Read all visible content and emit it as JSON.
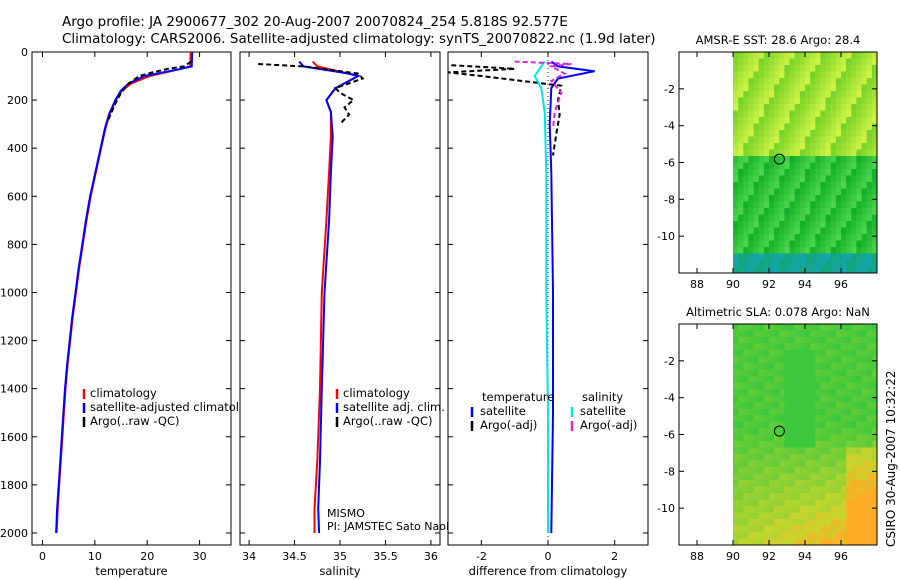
{
  "header": {
    "line1": "Argo profile: JA 2900677_302 20-Aug-2007 20070824_254 5.818S 92.577E",
    "line2": "Climatology: CARS2006. Satellite-adjusted climatology: synTS_20070822.nc (1.9d later)"
  },
  "side_stamp": "CSIRO 30-Aug-2007 10:32:22",
  "colors": {
    "climatology": "#ff0000",
    "satellite": "#0000ff",
    "argo": "#000000",
    "sat_salinity": "#00e5ee",
    "argo_salinity": "#e020e0"
  },
  "chart_data": [
    {
      "type": "line",
      "id": "temperature",
      "xlabel": "temperature",
      "ylabel": "",
      "xlim": [
        -2,
        36
      ],
      "ylim": [
        2050,
        0
      ],
      "xticks": [
        0,
        10,
        20,
        30
      ],
      "yticks": [
        0,
        200,
        400,
        600,
        800,
        1000,
        1200,
        1400,
        1600,
        1800,
        2000
      ],
      "legend": [
        "climatology",
        "satellite-adjusted climatology",
        "Argo(..raw -QC)"
      ],
      "series": [
        {
          "name": "climatology",
          "color": "#ff0000",
          "dash": "",
          "points": [
            [
              28.3,
              0
            ],
            [
              28.2,
              60
            ],
            [
              26.5,
              70
            ],
            [
              20.5,
              100
            ],
            [
              17,
              130
            ],
            [
              15.2,
              160
            ],
            [
              14,
              200
            ],
            [
              12.8,
              260
            ],
            [
              12,
              320
            ],
            [
              11.2,
              400
            ],
            [
              10.2,
              500
            ],
            [
              9.2,
              600
            ],
            [
              8.4,
              700
            ],
            [
              7.7,
              800
            ],
            [
              7,
              900
            ],
            [
              6.4,
              1000
            ],
            [
              5.8,
              1100
            ],
            [
              5.3,
              1200
            ],
            [
              4.8,
              1300
            ],
            [
              4.4,
              1400
            ],
            [
              4.1,
              1500
            ],
            [
              3.8,
              1600
            ],
            [
              3.5,
              1700
            ],
            [
              3.2,
              1800
            ],
            [
              2.9,
              1900
            ],
            [
              2.7,
              2000
            ]
          ]
        },
        {
          "name": "satellite-adjusted climatology",
          "color": "#0000ff",
          "dash": "",
          "points": [
            [
              28.6,
              0
            ],
            [
              28.5,
              60
            ],
            [
              26,
              72
            ],
            [
              19.5,
              100
            ],
            [
              16.5,
              130
            ],
            [
              15,
              160
            ],
            [
              13.9,
              200
            ],
            [
              12.7,
              260
            ],
            [
              11.9,
              320
            ],
            [
              11.1,
              400
            ],
            [
              10.1,
              500
            ],
            [
              9.1,
              600
            ],
            [
              8.3,
              700
            ],
            [
              7.6,
              800
            ],
            [
              6.9,
              900
            ],
            [
              6.3,
              1000
            ],
            [
              5.7,
              1100
            ],
            [
              5.2,
              1200
            ],
            [
              4.7,
              1300
            ],
            [
              4.3,
              1400
            ],
            [
              4,
              1500
            ],
            [
              3.7,
              1600
            ],
            [
              3.4,
              1700
            ],
            [
              3.1,
              1800
            ],
            [
              2.8,
              1900
            ],
            [
              2.6,
              2000
            ]
          ]
        },
        {
          "name": "Argo(..raw -QC)",
          "color": "#000000",
          "dash": "5,3",
          "points": [
            [
              28.4,
              40
            ],
            [
              27,
              60
            ],
            [
              24,
              70
            ],
            [
              21,
              85
            ],
            [
              18.5,
              100
            ],
            [
              16.5,
              130
            ],
            [
              15,
              170
            ],
            [
              13.8,
              220
            ],
            [
              12.6,
              280
            ]
          ]
        }
      ]
    },
    {
      "type": "line",
      "id": "salinity",
      "xlabel": "salinity",
      "ylabel": "",
      "xlim": [
        33.9,
        36.1
      ],
      "ylim": [
        2050,
        0
      ],
      "xticks": [
        34,
        34.5,
        35,
        35.5,
        36
      ],
      "legend": [
        "climatology",
        "satellite adj. clim.",
        "Argo(..raw -QC)"
      ],
      "annotations": [
        "MISMO",
        "PI: JAMSTEC Sato Naoki"
      ],
      "series": [
        {
          "name": "climatology",
          "color": "#ff0000",
          "dash": "",
          "points": [
            [
              34.7,
              40
            ],
            [
              34.75,
              60
            ],
            [
              35.2,
              100
            ],
            [
              34.95,
              150
            ],
            [
              34.85,
              200
            ],
            [
              34.9,
              250
            ],
            [
              34.9,
              350
            ],
            [
              34.88,
              500
            ],
            [
              34.85,
              700
            ],
            [
              34.8,
              1000
            ],
            [
              34.78,
              1400
            ],
            [
              34.75,
              1700
            ],
            [
              34.72,
              1900
            ],
            [
              34.72,
              2000
            ]
          ]
        },
        {
          "name": "satellite adj. clim.",
          "color": "#0000ff",
          "dash": "",
          "points": [
            [
              34.55,
              40
            ],
            [
              34.6,
              60
            ],
            [
              35.1,
              90
            ],
            [
              35.2,
              100
            ],
            [
              34.95,
              150
            ],
            [
              34.85,
              200
            ],
            [
              34.9,
              250
            ],
            [
              34.92,
              350
            ],
            [
              34.9,
              500
            ],
            [
              34.88,
              700
            ],
            [
              34.83,
              1000
            ],
            [
              34.8,
              1400
            ],
            [
              34.78,
              1700
            ],
            [
              34.76,
              1900
            ],
            [
              34.77,
              2000
            ]
          ]
        },
        {
          "name": "Argo(..raw -QC)",
          "color": "#000000",
          "dash": "5,3",
          "points": [
            [
              34.1,
              50
            ],
            [
              34.6,
              60
            ],
            [
              35.2,
              90
            ],
            [
              35.25,
              110
            ],
            [
              34.95,
              150
            ],
            [
              35,
              170
            ],
            [
              35.15,
              200
            ],
            [
              35.05,
              230
            ],
            [
              35.1,
              260
            ],
            [
              35,
              300
            ]
          ]
        }
      ]
    },
    {
      "type": "line",
      "id": "difference",
      "xlabel": "difference from climatology",
      "ylabel": "",
      "xlim": [
        -3,
        3
      ],
      "ylim": [
        2050,
        0
      ],
      "xticks": [
        -2,
        0,
        2
      ],
      "legend_groups": [
        {
          "title": "temperature",
          "items": [
            "satellite",
            "Argo(-adj)"
          ]
        },
        {
          "title": "salinity",
          "items": [
            "satellite",
            "Argo(-adj)"
          ]
        }
      ],
      "series": [
        {
          "name": "temperature satellite",
          "color": "#0000ff",
          "dash": "",
          "points": [
            [
              0.1,
              40
            ],
            [
              0.3,
              60
            ],
            [
              1.4,
              80
            ],
            [
              0.3,
              110
            ],
            [
              0.1,
              150
            ],
            [
              0.05,
              300
            ],
            [
              0.1,
              500
            ],
            [
              0.15,
              1000
            ],
            [
              0.15,
              1500
            ],
            [
              0.1,
              2000
            ]
          ]
        },
        {
          "name": "temperature Argo(-adj)",
          "color": "#000000",
          "dash": "5,3",
          "points": [
            [
              -2.9,
              55
            ],
            [
              -1,
              70
            ],
            [
              -3,
              85
            ],
            [
              -2,
              100
            ],
            [
              0.4,
              140
            ],
            [
              0.3,
              200
            ],
            [
              0.35,
              260
            ],
            [
              0.25,
              340
            ],
            [
              0.15,
              430
            ]
          ]
        },
        {
          "name": "salinity satellite",
          "color": "#00e5ee",
          "dash": "",
          "points": [
            [
              -0.1,
              40
            ],
            [
              -0.2,
              60
            ],
            [
              -0.4,
              100
            ],
            [
              -0.2,
              150
            ],
            [
              -0.1,
              250
            ],
            [
              -0.05,
              500
            ],
            [
              -0.05,
              1000
            ],
            [
              0,
              1500
            ],
            [
              0,
              2000
            ]
          ]
        },
        {
          "name": "salinity Argo(-adj)",
          "color": "#e020e0",
          "dash": "5,3",
          "points": [
            [
              -1,
              40
            ],
            [
              0.7,
              50
            ],
            [
              0.1,
              60
            ],
            [
              0.5,
              90
            ],
            [
              0.1,
              120
            ],
            [
              0.4,
              170
            ],
            [
              0.2,
              250
            ],
            [
              0.15,
              320
            ]
          ]
        }
      ]
    },
    {
      "type": "heatmap",
      "id": "sst_map",
      "title": "AMSR-E SST: 28.6 Argo: 28.4",
      "xlim": [
        87,
        98
      ],
      "ylim": [
        -12,
        0
      ],
      "xticks": [
        88,
        90,
        92,
        94,
        96
      ],
      "yticks": [
        -2,
        -4,
        -6,
        -8,
        -10
      ],
      "marker": {
        "lon": 92.577,
        "lat": -5.818
      },
      "data_lon_start": 90
    },
    {
      "type": "heatmap",
      "id": "sla_map",
      "title": "Altimetric SLA: 0.078 Argo: NaN",
      "xlim": [
        87,
        98
      ],
      "ylim": [
        -12,
        0
      ],
      "xticks": [
        88,
        90,
        92,
        94,
        96
      ],
      "yticks": [
        -2,
        -4,
        -6,
        -8,
        -10
      ],
      "marker": {
        "lon": 92.577,
        "lat": -5.818
      },
      "data_lon_start": 90
    }
  ]
}
